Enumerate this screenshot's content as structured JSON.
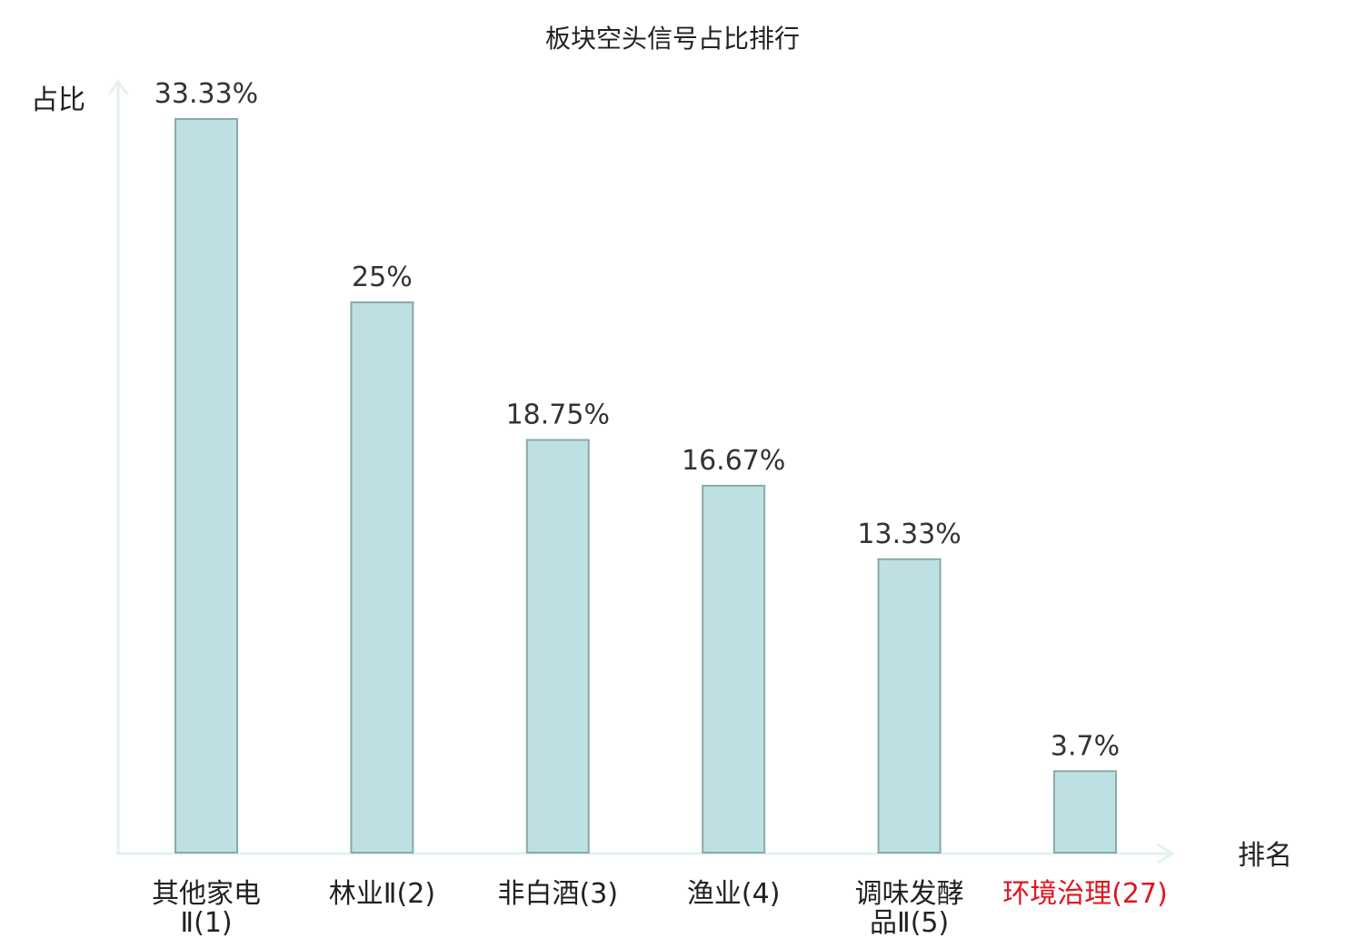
{
  "chart_data": {
    "type": "bar",
    "title": "板块空头信号占比排行",
    "ylabel": "占比",
    "xlabel": "排名",
    "categories": [
      {
        "lines": [
          "其他家电",
          "Ⅱ(1)"
        ],
        "highlight": false
      },
      {
        "lines": [
          "林业Ⅱ(2)"
        ],
        "highlight": false
      },
      {
        "lines": [
          "非白酒(3)"
        ],
        "highlight": false
      },
      {
        "lines": [
          "渔业(4)"
        ],
        "highlight": false
      },
      {
        "lines": [
          "调味发酵",
          "品Ⅱ(5)"
        ],
        "highlight": false
      },
      {
        "lines": [
          "环境治理(27)"
        ],
        "highlight": true
      }
    ],
    "values": [
      33.33,
      25,
      18.75,
      16.67,
      13.33,
      3.7
    ],
    "value_labels": [
      "33.33%",
      "25%",
      "18.75%",
      "16.67%",
      "13.33%",
      "3.7%"
    ],
    "ylim": [
      0,
      33.33
    ],
    "grid": false,
    "legend": "none",
    "colors": {
      "bar_fill": "#bde0e2",
      "bar_stroke": "#8aa9ab",
      "axis": "#e2f2ef",
      "text": "#222222",
      "value_text": "#333333",
      "highlight": "#e0141e"
    }
  }
}
